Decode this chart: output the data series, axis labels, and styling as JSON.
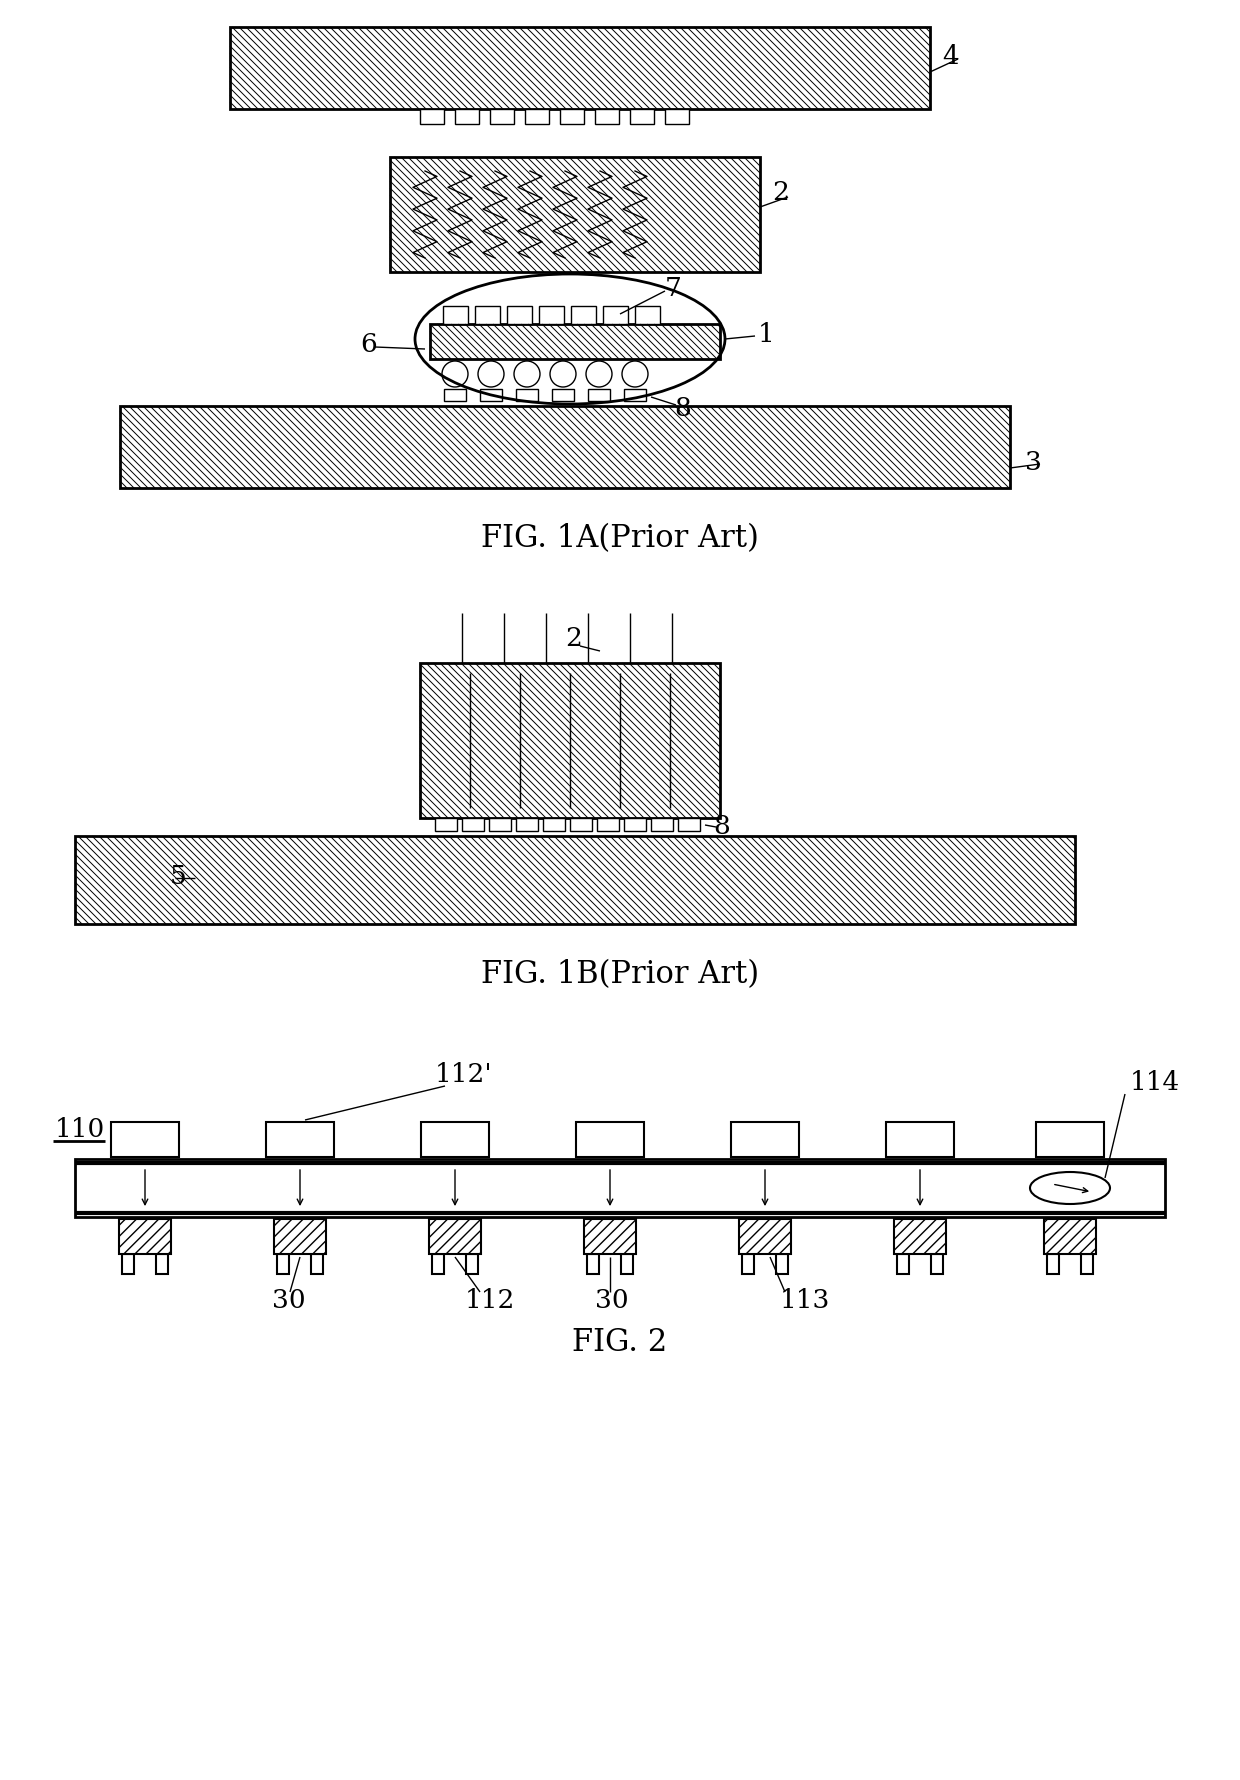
{
  "fig_width": 12.4,
  "fig_height": 17.81,
  "bg_color": "#ffffff",
  "line_color": "#000000",
  "fig1a_title": "FIG. 1A(Prior Art)",
  "fig1b_title": "FIG. 1B(Prior Art)",
  "fig2_title": "FIG. 2",
  "title_fontsize": 22
}
